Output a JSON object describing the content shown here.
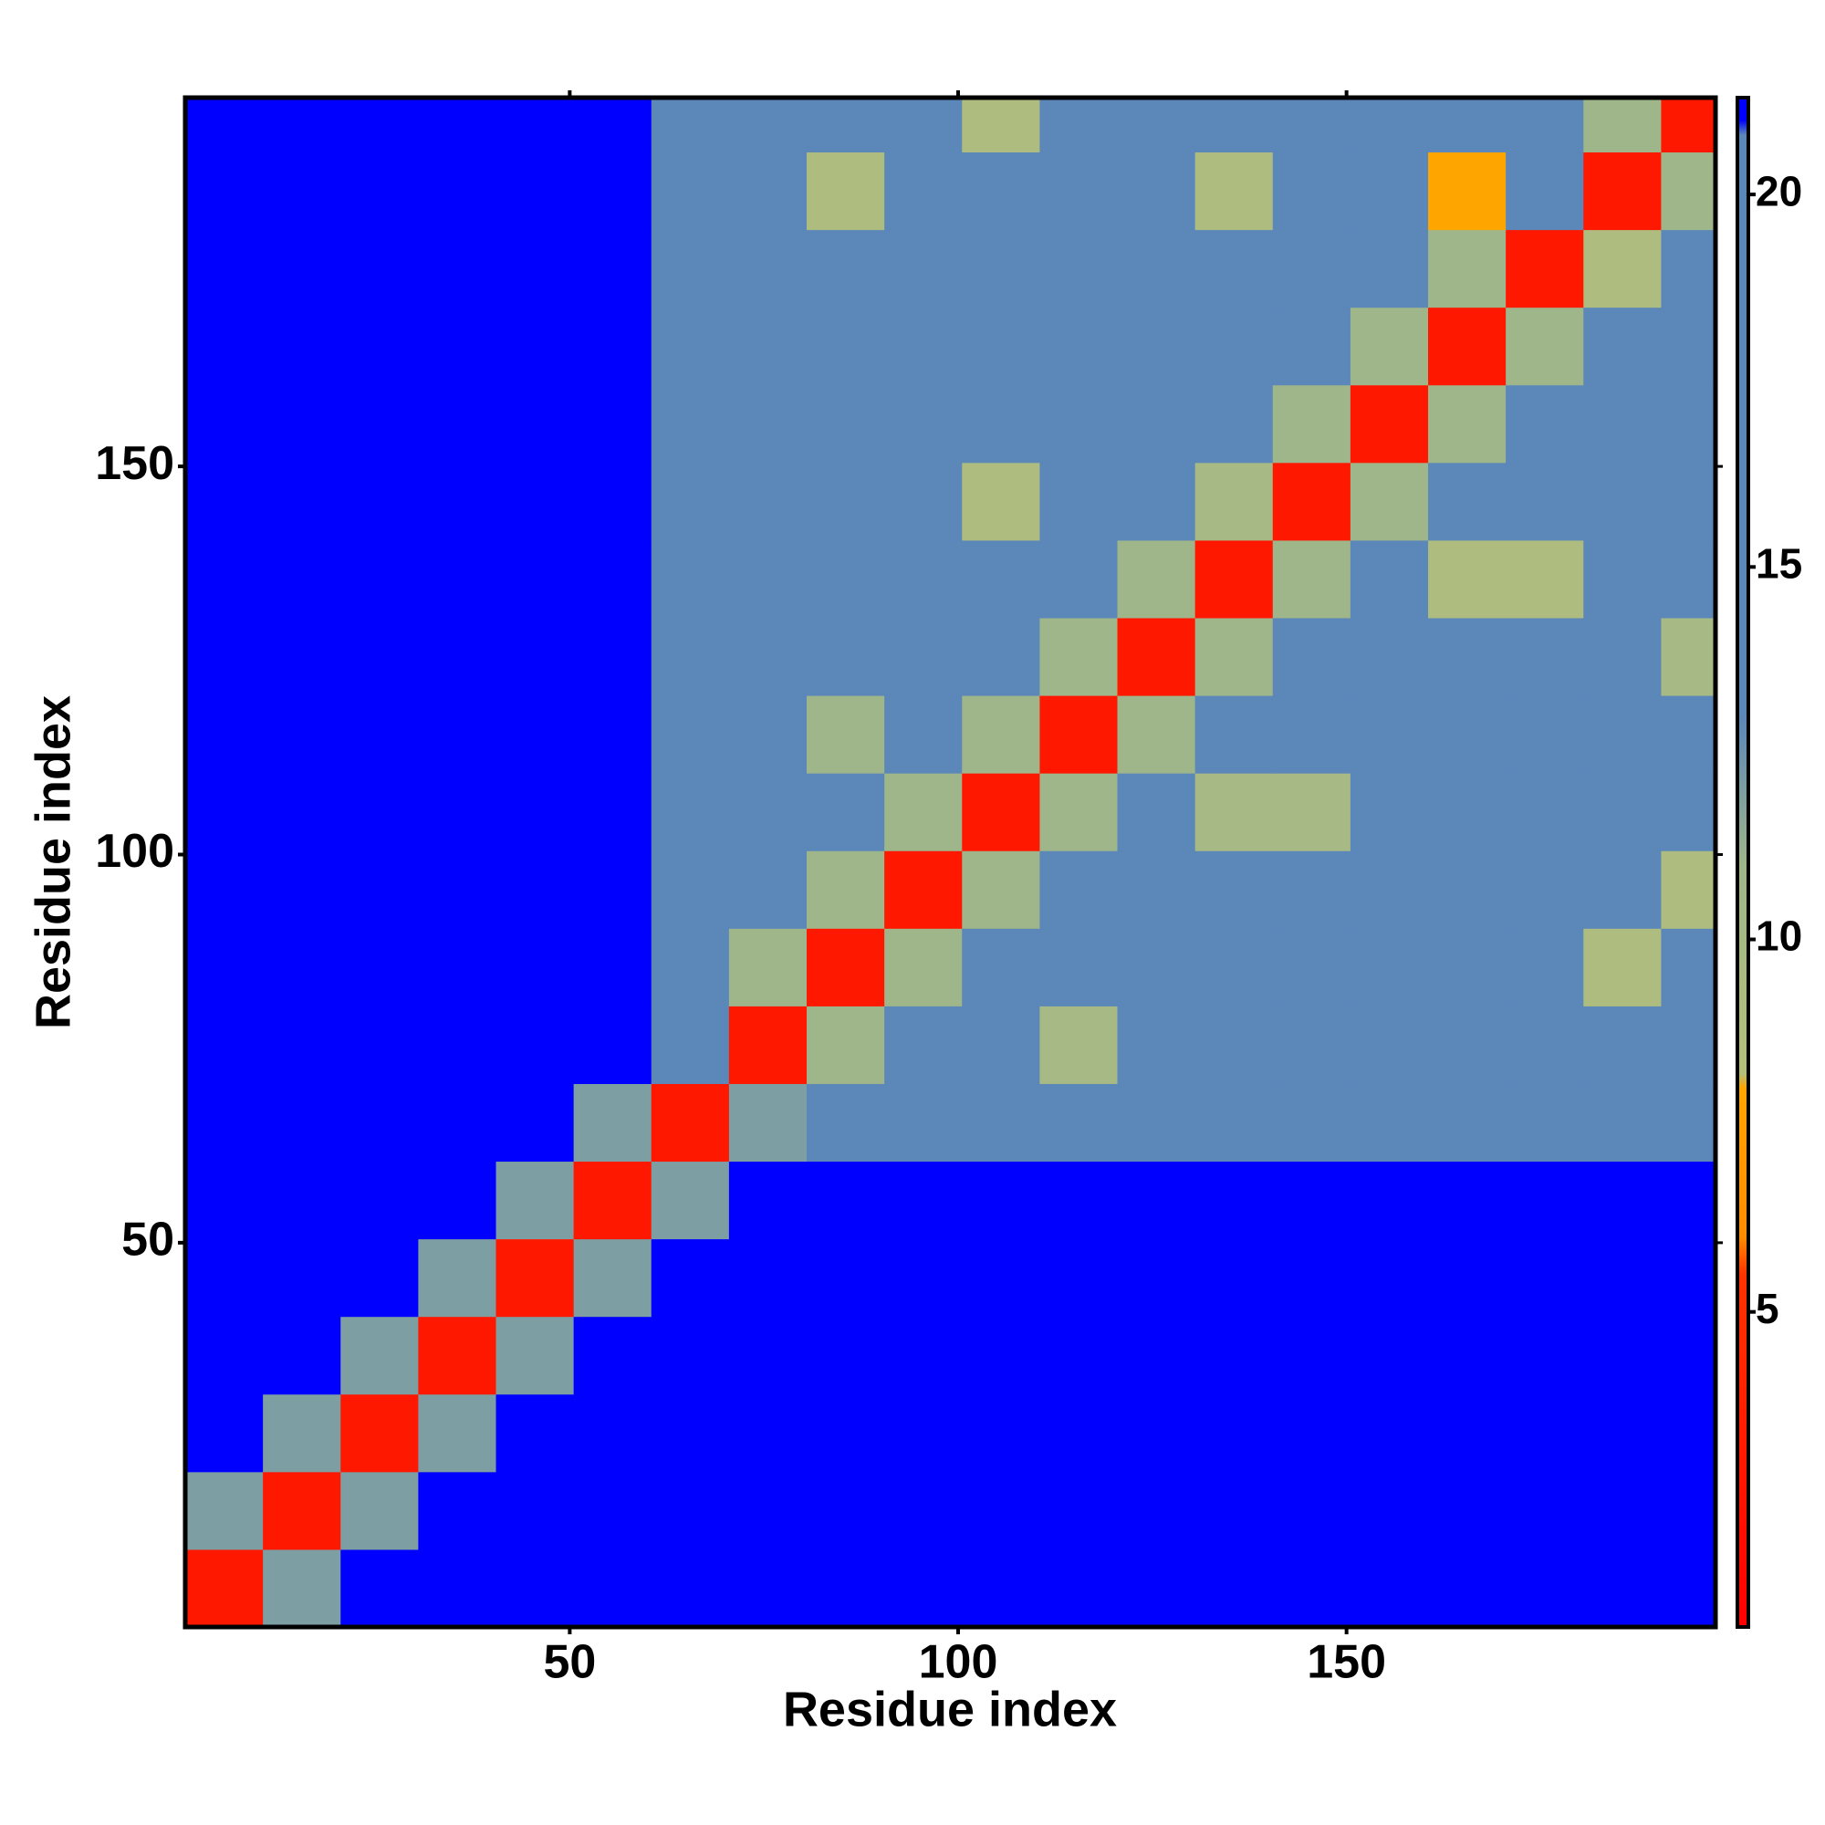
{
  "chart_data": {
    "type": "heatmap",
    "xlabel": "Residue index",
    "ylabel": "Residue index",
    "xlim": [
      0.5,
      197.5
    ],
    "ylim": [
      0.5,
      197.5
    ],
    "xticks": [
      50,
      100,
      150
    ],
    "yticks": [
      50,
      100,
      150
    ],
    "xbins": [
      0.5,
      10.5,
      20.5,
      30.5,
      40.5,
      50.5,
      60.5,
      70.5,
      80.5,
      90.5,
      100.5,
      110.5,
      120.5,
      130.5,
      140.5,
      150.5,
      160.5,
      170.5,
      180.5,
      190.5,
      197.5
    ],
    "ybins": [
      0.5,
      10.5,
      20.5,
      30.5,
      40.5,
      50.5,
      60.5,
      70.5,
      80.5,
      90.5,
      100.5,
      110.5,
      120.5,
      130.5,
      140.5,
      150.5,
      160.5,
      170.5,
      180.5,
      190.5,
      197.5
    ],
    "z": [
      [
        3,
        12,
        21,
        21,
        21,
        21,
        21,
        21,
        21,
        21,
        21,
        21,
        21,
        21,
        21,
        21,
        21,
        21,
        21,
        21
      ],
      [
        12,
        3,
        12,
        21,
        21,
        21,
        21,
        21,
        21,
        21,
        21,
        21,
        21,
        21,
        21,
        21,
        21,
        21,
        21,
        21
      ],
      [
        21,
        12,
        3,
        12,
        21,
        21,
        21,
        21,
        21,
        21,
        21,
        21,
        21,
        21,
        21,
        21,
        21,
        21,
        21,
        21
      ],
      [
        21,
        21,
        12,
        3,
        12,
        21,
        21,
        21,
        21,
        21,
        21,
        21,
        21,
        21,
        21,
        21,
        21,
        21,
        21,
        21
      ],
      [
        21,
        21,
        21,
        12,
        3,
        12,
        21,
        21,
        21,
        21,
        21,
        21,
        21,
        21,
        21,
        21,
        21,
        21,
        21,
        21
      ],
      [
        21,
        21,
        21,
        21,
        12,
        3,
        12,
        21,
        21,
        21,
        21,
        21,
        21,
        21,
        21,
        21,
        21,
        21,
        21,
        21
      ],
      [
        21,
        21,
        21,
        21,
        21,
        12,
        3,
        12,
        18,
        18,
        18,
        18,
        18,
        18,
        18,
        18,
        18,
        18,
        18,
        18
      ],
      [
        21,
        21,
        21,
        21,
        21,
        21,
        17,
        3,
        11,
        16,
        16,
        10,
        16,
        16,
        16,
        16,
        16,
        16,
        16,
        16
      ],
      [
        21,
        21,
        21,
        21,
        21,
        21,
        17,
        11,
        3,
        11,
        16,
        16,
        16,
        16,
        16,
        16,
        16,
        16,
        9,
        16
      ],
      [
        21,
        21,
        21,
        21,
        21,
        21,
        17,
        16,
        11,
        3,
        11,
        16,
        16,
        16,
        16,
        16,
        16,
        16,
        16,
        9
      ],
      [
        21,
        21,
        21,
        21,
        21,
        21,
        17,
        16,
        16,
        11,
        3,
        11,
        16,
        10,
        10,
        16,
        16,
        16,
        16,
        16
      ],
      [
        21,
        21,
        21,
        21,
        21,
        21,
        17,
        16,
        11,
        16,
        11,
        3,
        11,
        16,
        16,
        16,
        16,
        16,
        16,
        16
      ],
      [
        21,
        21,
        21,
        21,
        21,
        21,
        17,
        16,
        16,
        16,
        16,
        11,
        3,
        11,
        16,
        16,
        16,
        16,
        16,
        10
      ],
      [
        21,
        21,
        21,
        21,
        21,
        21,
        17,
        16,
        16,
        16,
        16,
        16,
        11,
        3,
        11,
        16,
        9,
        9,
        16,
        16
      ],
      [
        21,
        21,
        21,
        21,
        21,
        21,
        17,
        16,
        16,
        16,
        9,
        16,
        16,
        10,
        3,
        11,
        16,
        16,
        16,
        16
      ],
      [
        21,
        21,
        21,
        21,
        21,
        21,
        17,
        16,
        16,
        16,
        16,
        16,
        16,
        16,
        11,
        3,
        11,
        16,
        16,
        16
      ],
      [
        21,
        21,
        21,
        21,
        21,
        21,
        17,
        16,
        16,
        16,
        16,
        16,
        16,
        16,
        16,
        11,
        3,
        11,
        16,
        16
      ],
      [
        21,
        21,
        21,
        21,
        21,
        21,
        17,
        16,
        16,
        16,
        16,
        16,
        16,
        16,
        16,
        16,
        11,
        3,
        9,
        16
      ],
      [
        21,
        21,
        21,
        21,
        21,
        21,
        17,
        16,
        9,
        16,
        16,
        16,
        16,
        9,
        16,
        16,
        8,
        16,
        3,
        11
      ],
      [
        21,
        21,
        21,
        21,
        21,
        21,
        17,
        16,
        16,
        16,
        9,
        16,
        16,
        16,
        16,
        16,
        16,
        16,
        11,
        3
      ]
    ],
    "zlim": [
      0.77,
      21.3
    ],
    "zticks": [
      5,
      10,
      15,
      20
    ],
    "colormap": [
      {
        "value": 0.77,
        "color": "#ff0000"
      },
      {
        "value": 5.5,
        "color": "#ff3300"
      },
      {
        "value": 6,
        "color": "#ff8c00"
      },
      {
        "value": 8,
        "color": "#ffa500"
      },
      {
        "value": 8.2,
        "color": "#b4c07a"
      },
      {
        "value": 11,
        "color": "#9fb58a"
      },
      {
        "value": 13,
        "color": "#5b87b9"
      },
      {
        "value": 20.8,
        "color": "#5b87b9"
      },
      {
        "value": 21,
        "color": "#0000ff"
      },
      {
        "value": 21.3,
        "color": "#0000ff"
      }
    ]
  }
}
